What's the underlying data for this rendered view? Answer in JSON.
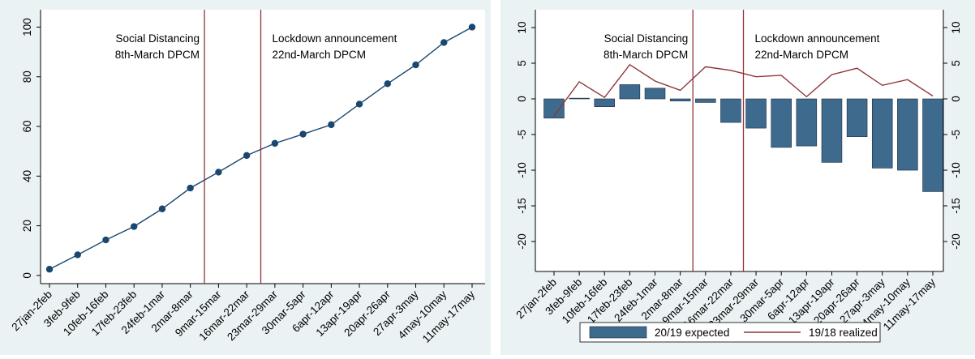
{
  "chart_data": [
    {
      "type": "line",
      "categories": [
        "27jan-2feb",
        "3feb-9feb",
        "10feb-16feb",
        "17feb-23feb",
        "24feb-1mar",
        "2mar-8mar",
        "9mar-15mar",
        "16mar-22mar",
        "23mar-29mar",
        "30mar-5apr",
        "6apr-12apr",
        "13apr-19apr",
        "20apr-26apr",
        "27apr-3may",
        "4may-10may",
        "11may-17may"
      ],
      "series": [
        {
          "color": "#1a476f",
          "values": [
            2.5,
            8.3,
            14.3,
            19.7,
            26.8,
            35.2,
            41.6,
            48.3,
            53.2,
            56.9,
            60.7,
            69,
            77.2,
            84.8,
            93.8,
            100
          ]
        }
      ],
      "ylim": [
        -3.3,
        107
      ],
      "yticks": [
        0,
        20,
        40,
        60,
        80,
        100
      ],
      "annotations": [
        {
          "lines": [
            "Social Distancing",
            "8th-March DPCM"
          ],
          "color": "#90353b"
        },
        {
          "lines": [
            "Lockdown announcement",
            "22nd-March DPCM"
          ],
          "color": "#90353b"
        }
      ]
    },
    {
      "type": "bar",
      "categories": [
        "27jan-2feb",
        "3feb-9feb",
        "10feb-16feb",
        "17feb-23feb",
        "24feb-1mar",
        "2mar-8mar",
        "9mar-15mar",
        "16mar-22mar",
        "23mar-29mar",
        "30mar-5apr",
        "6apr-12apr",
        "13apr-19apr",
        "20apr-26apr",
        "27apr-3may",
        "4may-10may",
        "11may-17may"
      ],
      "series": [
        {
          "name": "20/19 expected",
          "type": "bar",
          "color": "#3e6a8e",
          "values": [
            -2.7,
            0.1,
            -1.1,
            2.0,
            1.5,
            -0.3,
            -0.5,
            -3.3,
            -4.1,
            -6.8,
            -6.6,
            -8.9,
            -5.3,
            -9.7,
            -10.0,
            -13.0
          ]
        },
        {
          "name": "19/18 realized",
          "type": "line",
          "color": "#90353b",
          "values": [
            -2.4,
            2.4,
            0.2,
            4.8,
            2.5,
            1.2,
            4.5,
            4.0,
            3.1,
            3.3,
            0.3,
            3.4,
            4.3,
            1.9,
            2.7,
            0.4
          ]
        }
      ],
      "ylim": [
        -24.2,
        12.5
      ],
      "yticks": [
        -20,
        -15,
        -10,
        -5,
        0,
        5,
        10
      ],
      "annotations": [
        {
          "lines": [
            "Social Distancing",
            "8th-March DPCM"
          ],
          "color": "#90353b"
        },
        {
          "lines": [
            "Lockdown announcement",
            "22nd-March DPCM"
          ],
          "color": "#90353b"
        }
      ]
    }
  ]
}
